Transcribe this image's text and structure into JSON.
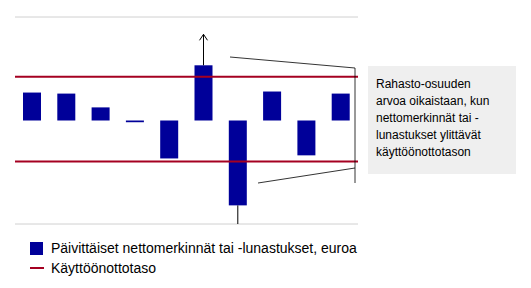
{
  "chart_data": {
    "type": "bar",
    "categories": [
      null,
      null,
      null,
      null,
      null,
      null,
      null,
      null,
      null,
      null
    ],
    "series": [
      {
        "name": "Päivittäiset nettomerkinnät tai -lunastukset, euroa",
        "color": "#000099",
        "values": [
          0.81,
          0.78,
          0.38,
          -0.05,
          -1.1,
          1.6,
          -2.46,
          0.84,
          -1.01,
          0.78
        ]
      }
    ],
    "reference_lines": {
      "name": "Käyttöönottotaso",
      "color": "#a50021",
      "values": [
        1.27,
        -1.19
      ]
    },
    "annotation": [
      "Rahasto-osuuden",
      "arvoa oikaistaan, kun",
      "nettomerkinnät tai -",
      "lunastukset ylittävät",
      "käyttöönottotason"
    ],
    "ylim": [
      -3,
      3
    ],
    "yticks": [
      -3,
      -2,
      -1,
      0,
      1,
      2,
      3
    ],
    "grid": true,
    "tick_labels": false
  }
}
